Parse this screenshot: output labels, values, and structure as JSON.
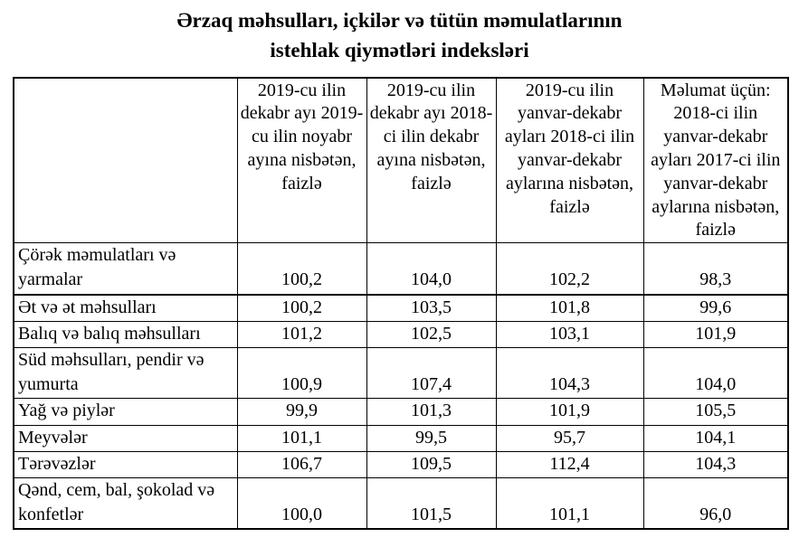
{
  "title": {
    "line1": "Ərzaq məhsulları, içkilər və tütün məmulatlarının",
    "line2": "istehlak qiymətləri indeksləri"
  },
  "table": {
    "columns": [
      "",
      "2019-cu ilin dekabr ayı 2019-cu ilin noyabr ayına nisbətən, faizlə",
      "2019-cu ilin dekabr ayı 2018-ci ilin dekabr ayına nisbətən, faizlə",
      "2019-cu ilin yanvar-dekabr ayları 2018-ci ilin yanvar-dekabr aylarına nisbətən, faizlə",
      "Məlumat üçün: 2018-ci ilin yanvar-dekabr ayları 2017-ci ilin yanvar-dekabr aylarına nisbətən, faizlə"
    ],
    "rows": [
      {
        "label": "Çörək məmulatları və yarmalar",
        "values": [
          "100,2",
          "104,0",
          "102,2",
          "98,3"
        ]
      },
      {
        "label": "Ət və ət məhsulları",
        "values": [
          "100,2",
          "103,5",
          "101,8",
          "99,6"
        ]
      },
      {
        "label": "Balıq və balıq məhsulları",
        "values": [
          "101,2",
          "102,5",
          "103,1",
          "101,9"
        ]
      },
      {
        "label": "Süd məhsulları, pendir və yumurta",
        "values": [
          "100,9",
          "107,4",
          "104,3",
          "104,0"
        ]
      },
      {
        "label": "Yağ və piylər",
        "values": [
          "99,9",
          "101,3",
          "101,9",
          "105,5"
        ]
      },
      {
        "label": "Meyvələr",
        "values": [
          "101,1",
          "99,5",
          "95,7",
          "104,1"
        ]
      },
      {
        "label": "Tərəvəzlər",
        "values": [
          "106,7",
          "109,5",
          "112,4",
          "104,3"
        ]
      },
      {
        "label": "Qənd, cem, bal, şokolad və konfetlər",
        "values": [
          "100,0",
          "101,5",
          "101,1",
          "96,0"
        ]
      }
    ]
  }
}
